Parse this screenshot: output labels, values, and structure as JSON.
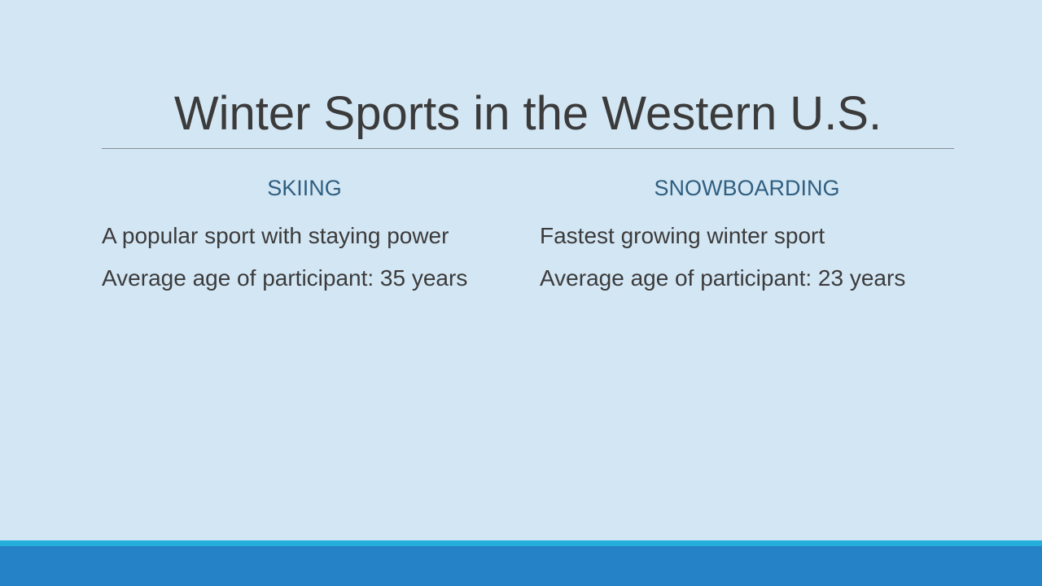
{
  "slide": {
    "title": "Winter Sports in the Western U.S.",
    "columns": [
      {
        "heading": "SKIING",
        "bullets": [
          "A popular sport with staying power",
          "Average age of participant: 35 years"
        ]
      },
      {
        "heading": "SNOWBOARDING",
        "bullets": [
          "Fastest growing winter sport",
          "Average age of participant: 23 years"
        ]
      }
    ]
  },
  "colors": {
    "background": "#d3e6f4",
    "title_text": "#3b3b3b",
    "heading_text": "#2f5f80",
    "band_accent": "#24aedc",
    "band_main": "#2682c7"
  }
}
